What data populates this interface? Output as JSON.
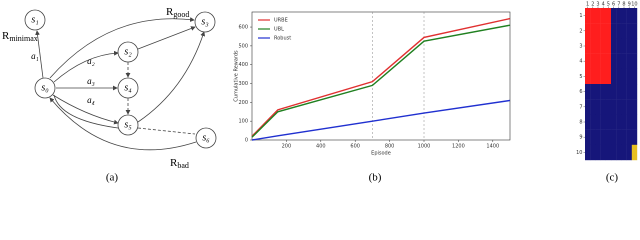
{
  "diagram": {
    "nodes": [
      {
        "label": "s₀"
      },
      {
        "label": "s₁"
      },
      {
        "label": "s₂"
      },
      {
        "label": "s₃"
      },
      {
        "label": "s₄"
      },
      {
        "label": "s₅"
      },
      {
        "label": "s₆"
      }
    ],
    "edge_labels": [
      "a₁",
      "a₂",
      "a₃",
      "a₄"
    ],
    "rewards": [
      {
        "main": "R",
        "sub": "minimax"
      },
      {
        "main": "R",
        "sub": "good"
      },
      {
        "main": "R",
        "sub": "bad"
      }
    ]
  },
  "chart_data": [
    {
      "type": "line",
      "xlabel": "Episode",
      "ylabel": "Cumulative Rewards",
      "x": [
        0,
        150,
        700,
        1000,
        1500
      ],
      "series": [
        {
          "name": "URBE",
          "color": "#e03030",
          "values": [
            20,
            160,
            310,
            545,
            645
          ]
        },
        {
          "name": "UBL",
          "color": "#208020",
          "values": [
            15,
            150,
            290,
            525,
            610
          ]
        },
        {
          "name": "Robust",
          "color": "#2030d0",
          "values": [
            0,
            22,
            100,
            143,
            210
          ]
        }
      ],
      "xlim": [
        0,
        1500
      ],
      "ylim": [
        0,
        680
      ],
      "xticks": [
        200,
        400,
        600,
        800,
        1000,
        1200,
        1400
      ],
      "yticks": [
        0,
        100,
        200,
        300,
        400,
        500,
        600
      ],
      "vlines": [
        700,
        1000
      ],
      "legend": "upper left"
    },
    {
      "type": "heatmap",
      "colors": [
        "#16167a",
        "#ff1e1e",
        "#e8c020"
      ],
      "values": [
        [
          1,
          1,
          1,
          1,
          1,
          0,
          0,
          0,
          0,
          0
        ],
        [
          1,
          1,
          1,
          1,
          1,
          0,
          0,
          0,
          0,
          0
        ],
        [
          1,
          1,
          1,
          1,
          1,
          0,
          0,
          0,
          0,
          0
        ],
        [
          1,
          1,
          1,
          1,
          1,
          0,
          0,
          0,
          0,
          0
        ],
        [
          1,
          1,
          1,
          1,
          1,
          0,
          0,
          0,
          0,
          0
        ],
        [
          0,
          0,
          0,
          0,
          0,
          0,
          0,
          0,
          0,
          0
        ],
        [
          0,
          0,
          0,
          0,
          0,
          0,
          0,
          0,
          0,
          0
        ],
        [
          0,
          0,
          0,
          0,
          0,
          0,
          0,
          0,
          0,
          0
        ],
        [
          0,
          0,
          0,
          0,
          0,
          0,
          0,
          0,
          0,
          0
        ],
        [
          0,
          0,
          0,
          0,
          0,
          0,
          0,
          0,
          0,
          2
        ]
      ],
      "xticks": [
        1,
        2,
        3,
        4,
        5,
        6,
        7,
        8,
        9,
        10
      ],
      "yticks": [
        1,
        2,
        3,
        4,
        5,
        6,
        7,
        8,
        9,
        10
      ],
      "xlim": [
        0.5,
        10.5
      ],
      "ylim": [
        0.5,
        10.5
      ]
    }
  ],
  "captions": [
    "(a)",
    "(b)",
    "(c)"
  ]
}
